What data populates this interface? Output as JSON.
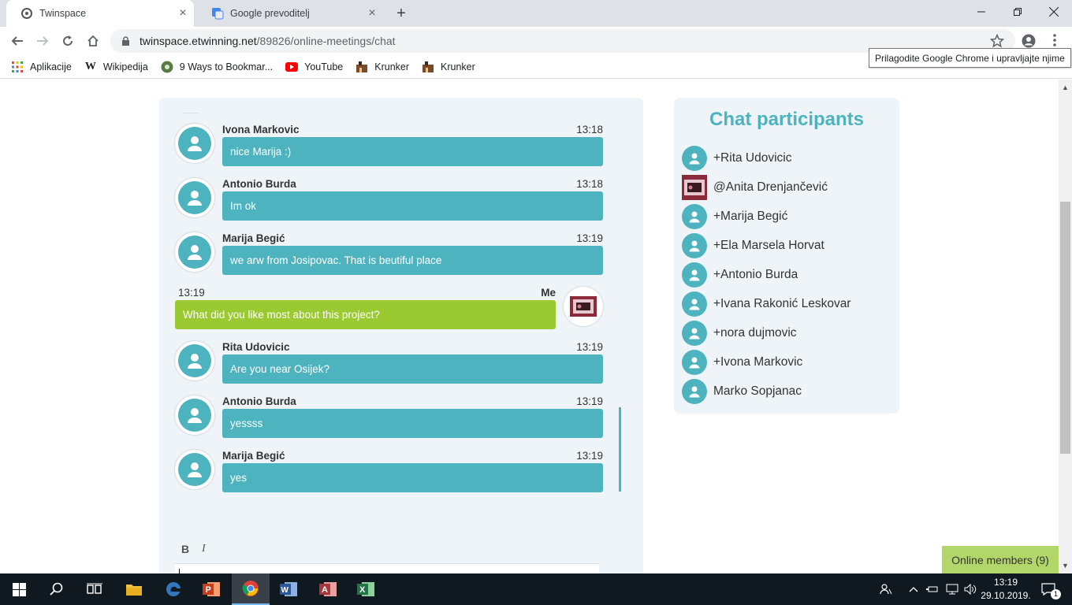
{
  "browser": {
    "tabs": [
      {
        "title": "Twinspace",
        "active": true
      },
      {
        "title": "Google prevoditelj",
        "active": false
      }
    ],
    "new_tab_icon": "plus-icon",
    "url_host": "twinspace.etwinning.net",
    "url_path": "/89826/online-meetings/chat",
    "bookmarks": [
      {
        "label": "Aplikacije",
        "icon": "apps-grid-icon"
      },
      {
        "label": "Wikipedija",
        "icon": "wikipedia-icon"
      },
      {
        "label": "9 Ways to Bookmar...",
        "icon": "site-icon"
      },
      {
        "label": "YouTube",
        "icon": "youtube-icon"
      },
      {
        "label": "Krunker",
        "icon": "krunker-icon"
      },
      {
        "label": "Krunker",
        "icon": "krunker-icon"
      }
    ],
    "tooltip": "Prilagodite Google Chrome i upravljajte njime"
  },
  "chat": {
    "messages": [
      {
        "name": "Ivona Markovic",
        "time": "13:18",
        "text": "nice Marija :)",
        "me": false
      },
      {
        "name": "Antonio Burda",
        "time": "13:18",
        "text": "Im ok",
        "me": false
      },
      {
        "name": "Marija Begić",
        "time": "13:19",
        "text": "we arw from Josipovac. That is beutiful place",
        "me": false
      },
      {
        "name": "Me",
        "time": "13:19",
        "text": "What did you like most about this project?",
        "me": true
      },
      {
        "name": "Rita Udovicic",
        "time": "13:19",
        "text": "Are you near Osijek?",
        "me": false
      },
      {
        "name": "Antonio Burda",
        "time": "13:19",
        "text": "yessss",
        "me": false
      },
      {
        "name": "Marija Begić",
        "time": "13:19",
        "text": "yes",
        "me": false
      }
    ],
    "format_bold": "B",
    "format_italic": "I"
  },
  "participants": {
    "title": "Chat participants",
    "list": [
      {
        "name": "+Rita Udovicic",
        "photo": false
      },
      {
        "name": "@Anita Drenjančević",
        "photo": true
      },
      {
        "name": "+Marija Begić",
        "photo": false
      },
      {
        "name": "+Ela Marsela Horvat",
        "photo": false
      },
      {
        "name": "+Antonio Burda",
        "photo": false
      },
      {
        "name": "+Ivana Rakonić Leskovar",
        "photo": false
      },
      {
        "name": "+nora dujmovic",
        "photo": false
      },
      {
        "name": "+Ivona Markovic",
        "photo": false
      },
      {
        "name": "Marko Sopjanac",
        "photo": false
      }
    ]
  },
  "online_members": "Online members (9)",
  "taskbar": {
    "time": "13:19",
    "date": "29.10.2019.",
    "notification_count": "1"
  },
  "colors": {
    "accent": "#4db3bf",
    "me_bubble": "#9ac931",
    "panel_bg": "#eef4f7",
    "online_bg": "#b3d66a"
  }
}
